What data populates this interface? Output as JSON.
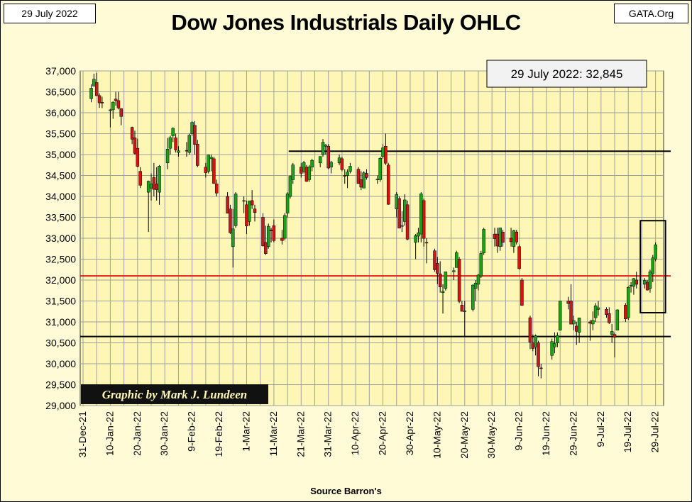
{
  "header": {
    "date": "29 July 2022",
    "site": "GATA.Org",
    "title": "Dow Jones Industrials Daily OHLC"
  },
  "annotation": {
    "last_close": "29 July 2022: 32,845",
    "credit": "Graphic by Mark J. Lundeen"
  },
  "footer": {
    "source": "Source Barron's"
  },
  "colors": {
    "up": "#1aa31a",
    "down": "#d21414",
    "plot_bg": "#fdf6b4",
    "page_bg": "#fefbd6",
    "grid": "#a0a0a0",
    "red_line": "#e02020",
    "black_line": "#000000"
  },
  "chart_data": {
    "type": "ohlc",
    "title": "Dow Jones Industrials Daily OHLC",
    "xlabel": "Source Barron's",
    "ylabel": "",
    "ylim": [
      29000,
      37000
    ],
    "y_ticks": [
      29000,
      29500,
      30000,
      30500,
      31000,
      31500,
      32000,
      32500,
      33000,
      33500,
      34000,
      34500,
      35000,
      35500,
      36000,
      36500,
      37000
    ],
    "x_ticks": [
      "31-Dec-21",
      "10-Jan-22",
      "20-Jan-22",
      "30-Jan-22",
      "9-Feb-22",
      "19-Feb-22",
      "1-Mar-22",
      "11-Mar-22",
      "21-Mar-22",
      "31-Mar-22",
      "10-Apr-22",
      "20-Apr-22",
      "30-Apr-22",
      "10-May-22",
      "20-May-22",
      "30-May-22",
      "9-Jun-22",
      "19-Jun-22",
      "29-Jun-22",
      "9-Jul-22",
      "19-Jul-22",
      "29-Jul-22"
    ],
    "grid": true,
    "reference_lines": [
      {
        "value": 35080,
        "color": "black",
        "from": "2022-03-18"
      },
      {
        "value": 32100,
        "color": "red",
        "from": "2021-12-31"
      },
      {
        "value": 30650,
        "color": "black",
        "from": "2021-12-31"
      }
    ],
    "highlight_box": {
      "x": [
        "2022-07-25",
        "2022-07-29"
      ],
      "y": [
        31220,
        33420
      ]
    },
    "candles": [
      {
        "d": "2022-01-03",
        "o": 36338,
        "h": 36680,
        "l": 36250,
        "c": 36585
      },
      {
        "d": "2022-01-04",
        "o": 36636,
        "h": 36934,
        "l": 36636,
        "c": 36800
      },
      {
        "d": "2022-01-05",
        "o": 36722,
        "h": 36952,
        "l": 36400,
        "c": 36407
      },
      {
        "d": "2022-01-06",
        "o": 36409,
        "h": 36464,
        "l": 36117,
        "c": 36236
      },
      {
        "d": "2022-01-07",
        "o": 36249,
        "h": 36383,
        "l": 36112,
        "c": 36231
      },
      {
        "d": "2022-01-10",
        "o": 36050,
        "h": 36093,
        "l": 35650,
        "c": 36068
      },
      {
        "d": "2022-01-11",
        "o": 36069,
        "h": 36272,
        "l": 35855,
        "c": 36252
      },
      {
        "d": "2022-01-12",
        "o": 36327,
        "h": 36500,
        "l": 36170,
        "c": 36290
      },
      {
        "d": "2022-01-13",
        "o": 36290,
        "h": 36500,
        "l": 36080,
        "c": 36113
      },
      {
        "d": "2022-01-14",
        "o": 36100,
        "h": 36108,
        "l": 35700,
        "c": 35911
      },
      {
        "d": "2022-01-18",
        "o": 35650,
        "h": 35668,
        "l": 35250,
        "c": 35368
      },
      {
        "d": "2022-01-19",
        "o": 35400,
        "h": 35571,
        "l": 35000,
        "c": 35029
      },
      {
        "d": "2022-01-20",
        "o": 35150,
        "h": 35380,
        "l": 34700,
        "c": 34715
      },
      {
        "d": "2022-01-21",
        "o": 34600,
        "h": 34700,
        "l": 34200,
        "c": 34265
      },
      {
        "d": "2022-01-24",
        "o": 34100,
        "h": 34380,
        "l": 33150,
        "c": 34364
      },
      {
        "d": "2022-01-25",
        "o": 34200,
        "h": 34550,
        "l": 33900,
        "c": 34297
      },
      {
        "d": "2022-01-26",
        "o": 34450,
        "h": 34800,
        "l": 34000,
        "c": 34168
      },
      {
        "d": "2022-01-27",
        "o": 34300,
        "h": 34700,
        "l": 33900,
        "c": 34160
      },
      {
        "d": "2022-01-28",
        "o": 34100,
        "h": 34750,
        "l": 33800,
        "c": 34725
      },
      {
        "d": "2022-01-31",
        "o": 34800,
        "h": 35400,
        "l": 34650,
        "c": 35131
      },
      {
        "d": "2022-02-01",
        "o": 35150,
        "h": 35450,
        "l": 35000,
        "c": 35405
      },
      {
        "d": "2022-02-02",
        "o": 35450,
        "h": 35650,
        "l": 35300,
        "c": 35629
      },
      {
        "d": "2022-02-03",
        "o": 35400,
        "h": 35500,
        "l": 35050,
        "c": 35111
      },
      {
        "d": "2022-02-04",
        "o": 35050,
        "h": 35200,
        "l": 34950,
        "c": 35089
      },
      {
        "d": "2022-02-07",
        "o": 35100,
        "h": 35300,
        "l": 34950,
        "c": 35091
      },
      {
        "d": "2022-02-08",
        "o": 35050,
        "h": 35500,
        "l": 35000,
        "c": 35463
      },
      {
        "d": "2022-02-09",
        "o": 35500,
        "h": 35800,
        "l": 35450,
        "c": 35768
      },
      {
        "d": "2022-02-10",
        "o": 35700,
        "h": 35800,
        "l": 35000,
        "c": 35241
      },
      {
        "d": "2022-02-11",
        "o": 35250,
        "h": 35350,
        "l": 34700,
        "c": 34738
      },
      {
        "d": "2022-02-14",
        "o": 34700,
        "h": 34800,
        "l": 34450,
        "c": 34566
      },
      {
        "d": "2022-02-15",
        "o": 34600,
        "h": 35000,
        "l": 34550,
        "c": 34989
      },
      {
        "d": "2022-02-16",
        "o": 34900,
        "h": 35000,
        "l": 34600,
        "c": 34935
      },
      {
        "d": "2022-02-17",
        "o": 34900,
        "h": 34950,
        "l": 34300,
        "c": 34312
      },
      {
        "d": "2022-02-18",
        "o": 34300,
        "h": 34400,
        "l": 34000,
        "c": 34079
      },
      {
        "d": "2022-02-22",
        "o": 34000,
        "h": 34100,
        "l": 33600,
        "c": 33596
      },
      {
        "d": "2022-02-23",
        "o": 33700,
        "h": 33800,
        "l": 33100,
        "c": 33131
      },
      {
        "d": "2022-02-24",
        "o": 32800,
        "h": 33700,
        "l": 32300,
        "c": 33224
      },
      {
        "d": "2022-02-25",
        "o": 33300,
        "h": 34100,
        "l": 33250,
        "c": 34059
      },
      {
        "d": "2022-02-28",
        "o": 33900,
        "h": 34000,
        "l": 33600,
        "c": 33893
      },
      {
        "d": "2022-03-01",
        "o": 33800,
        "h": 33900,
        "l": 33100,
        "c": 33294
      },
      {
        "d": "2022-03-02",
        "o": 33400,
        "h": 33900,
        "l": 33300,
        "c": 33892
      },
      {
        "d": "2022-03-03",
        "o": 33900,
        "h": 34150,
        "l": 33700,
        "c": 33795
      },
      {
        "d": "2022-03-04",
        "o": 33700,
        "h": 33800,
        "l": 33400,
        "c": 33615
      },
      {
        "d": "2022-03-07",
        "o": 33500,
        "h": 33600,
        "l": 32800,
        "c": 32818
      },
      {
        "d": "2022-03-08",
        "o": 32900,
        "h": 33300,
        "l": 32600,
        "c": 32633
      },
      {
        "d": "2022-03-09",
        "o": 32800,
        "h": 33350,
        "l": 32750,
        "c": 33287
      },
      {
        "d": "2022-03-10",
        "o": 33200,
        "h": 33250,
        "l": 32900,
        "c": 33174
      },
      {
        "d": "2022-03-11",
        "o": 33300,
        "h": 33450,
        "l": 32900,
        "c": 32944
      },
      {
        "d": "2022-03-14",
        "o": 33000,
        "h": 33200,
        "l": 32850,
        "c": 32945
      },
      {
        "d": "2022-03-15",
        "o": 33000,
        "h": 33600,
        "l": 32950,
        "c": 33544
      },
      {
        "d": "2022-03-16",
        "o": 33600,
        "h": 34100,
        "l": 33500,
        "c": 34063
      },
      {
        "d": "2022-03-17",
        "o": 34000,
        "h": 34500,
        "l": 33950,
        "c": 34481
      },
      {
        "d": "2022-03-18",
        "o": 34400,
        "h": 34800,
        "l": 34300,
        "c": 34754
      },
      {
        "d": "2022-03-21",
        "o": 34700,
        "h": 34800,
        "l": 34450,
        "c": 34553
      },
      {
        "d": "2022-03-22",
        "o": 34600,
        "h": 34850,
        "l": 34550,
        "c": 34808
      },
      {
        "d": "2022-03-23",
        "o": 34700,
        "h": 34750,
        "l": 34350,
        "c": 34358
      },
      {
        "d": "2022-03-24",
        "o": 34400,
        "h": 34750,
        "l": 34350,
        "c": 34707
      },
      {
        "d": "2022-03-25",
        "o": 34700,
        "h": 34900,
        "l": 34600,
        "c": 34861
      },
      {
        "d": "2022-03-28",
        "o": 34800,
        "h": 34950,
        "l": 34700,
        "c": 34955
      },
      {
        "d": "2022-03-29",
        "o": 35000,
        "h": 35370,
        "l": 34950,
        "c": 35294
      },
      {
        "d": "2022-03-30",
        "o": 35200,
        "h": 35250,
        "l": 35000,
        "c": 35228
      },
      {
        "d": "2022-03-31",
        "o": 35200,
        "h": 35250,
        "l": 34650,
        "c": 34678
      },
      {
        "d": "2022-04-01",
        "o": 34700,
        "h": 34850,
        "l": 34550,
        "c": 34818
      },
      {
        "d": "2022-04-04",
        "o": 34800,
        "h": 35000,
        "l": 34750,
        "c": 34922
      },
      {
        "d": "2022-04-05",
        "o": 34900,
        "h": 34950,
        "l": 34600,
        "c": 34641
      },
      {
        "d": "2022-04-06",
        "o": 34500,
        "h": 34650,
        "l": 34300,
        "c": 34497
      },
      {
        "d": "2022-04-07",
        "o": 34500,
        "h": 34650,
        "l": 34200,
        "c": 34583
      },
      {
        "d": "2022-04-08",
        "o": 34600,
        "h": 34800,
        "l": 34550,
        "c": 34721
      },
      {
        "d": "2022-04-11",
        "o": 34650,
        "h": 34700,
        "l": 34300,
        "c": 34308
      },
      {
        "d": "2022-04-12",
        "o": 34400,
        "h": 34600,
        "l": 34150,
        "c": 34220
      },
      {
        "d": "2022-04-13",
        "o": 34200,
        "h": 34600,
        "l": 34200,
        "c": 34564
      },
      {
        "d": "2022-04-14",
        "o": 34550,
        "h": 34650,
        "l": 34400,
        "c": 34451
      },
      {
        "d": "2022-04-18",
        "o": 34400,
        "h": 34500,
        "l": 34300,
        "c": 34412
      },
      {
        "d": "2022-04-19",
        "o": 34400,
        "h": 34950,
        "l": 34350,
        "c": 34911
      },
      {
        "d": "2022-04-20",
        "o": 34950,
        "h": 35250,
        "l": 34900,
        "c": 35161
      },
      {
        "d": "2022-04-21",
        "o": 35200,
        "h": 35500,
        "l": 34750,
        "c": 34793
      },
      {
        "d": "2022-04-22",
        "o": 34750,
        "h": 34800,
        "l": 33800,
        "c": 33811
      },
      {
        "d": "2022-04-25",
        "o": 33700,
        "h": 34100,
        "l": 33500,
        "c": 34049
      },
      {
        "d": "2022-04-26",
        "o": 33950,
        "h": 34000,
        "l": 33250,
        "c": 33240
      },
      {
        "d": "2022-04-27",
        "o": 33300,
        "h": 33650,
        "l": 33150,
        "c": 33302
      },
      {
        "d": "2022-04-28",
        "o": 33400,
        "h": 34050,
        "l": 33300,
        "c": 33916
      },
      {
        "d": "2022-04-29",
        "o": 33800,
        "h": 33900,
        "l": 32950,
        "c": 32977
      },
      {
        "d": "2022-05-02",
        "o": 32900,
        "h": 33100,
        "l": 32500,
        "c": 33061
      },
      {
        "d": "2022-05-03",
        "o": 33050,
        "h": 33250,
        "l": 32900,
        "c": 33129
      },
      {
        "d": "2022-05-04",
        "o": 33100,
        "h": 34100,
        "l": 32900,
        "c": 34061
      },
      {
        "d": "2022-05-05",
        "o": 33900,
        "h": 33950,
        "l": 32800,
        "c": 32997
      },
      {
        "d": "2022-05-06",
        "o": 32900,
        "h": 33000,
        "l": 32400,
        "c": 32899
      },
      {
        "d": "2022-05-09",
        "o": 32700,
        "h": 32750,
        "l": 32200,
        "c": 32246
      },
      {
        "d": "2022-05-10",
        "o": 32400,
        "h": 32550,
        "l": 31900,
        "c": 32161
      },
      {
        "d": "2022-05-11",
        "o": 32150,
        "h": 32450,
        "l": 31700,
        "c": 31834
      },
      {
        "d": "2022-05-12",
        "o": 31700,
        "h": 31900,
        "l": 31200,
        "c": 31730
      },
      {
        "d": "2022-05-13",
        "o": 31800,
        "h": 32200,
        "l": 31750,
        "c": 32197
      },
      {
        "d": "2022-05-16",
        "o": 32200,
        "h": 32300,
        "l": 32000,
        "c": 32223
      },
      {
        "d": "2022-05-17",
        "o": 32300,
        "h": 32700,
        "l": 32300,
        "c": 32655
      },
      {
        "d": "2022-05-18",
        "o": 32500,
        "h": 32550,
        "l": 31450,
        "c": 31490
      },
      {
        "d": "2022-05-19",
        "o": 31400,
        "h": 31500,
        "l": 31250,
        "c": 31253
      },
      {
        "d": "2022-05-20",
        "o": 31250,
        "h": 31500,
        "l": 30650,
        "c": 31262
      },
      {
        "d": "2022-05-23",
        "o": 31300,
        "h": 31900,
        "l": 31250,
        "c": 31880
      },
      {
        "d": "2022-05-24",
        "o": 31800,
        "h": 32000,
        "l": 31500,
        "c": 31929
      },
      {
        "d": "2022-05-25",
        "o": 31900,
        "h": 32150,
        "l": 31750,
        "c": 32120
      },
      {
        "d": "2022-05-26",
        "o": 32100,
        "h": 32700,
        "l": 32050,
        "c": 32637
      },
      {
        "d": "2022-05-27",
        "o": 32650,
        "h": 33250,
        "l": 32600,
        "c": 33213
      },
      {
        "d": "2022-05-31",
        "o": 33100,
        "h": 33250,
        "l": 32800,
        "c": 32990
      },
      {
        "d": "2022-06-01",
        "o": 33100,
        "h": 33250,
        "l": 32650,
        "c": 32813
      },
      {
        "d": "2022-06-02",
        "o": 32800,
        "h": 33200,
        "l": 32700,
        "c": 33248
      },
      {
        "d": "2022-06-03",
        "o": 33150,
        "h": 33200,
        "l": 32800,
        "c": 32900
      },
      {
        "d": "2022-06-06",
        "o": 33000,
        "h": 33250,
        "l": 32800,
        "c": 32916
      },
      {
        "d": "2022-06-07",
        "o": 32800,
        "h": 33200,
        "l": 32650,
        "c": 33180
      },
      {
        "d": "2022-06-08",
        "o": 33150,
        "h": 33200,
        "l": 32850,
        "c": 32910
      },
      {
        "d": "2022-06-09",
        "o": 32800,
        "h": 32850,
        "l": 32250,
        "c": 32272
      },
      {
        "d": "2022-06-10",
        "o": 32000,
        "h": 32050,
        "l": 31400,
        "c": 31393
      },
      {
        "d": "2022-06-13",
        "o": 31100,
        "h": 31150,
        "l": 30350,
        "c": 30517
      },
      {
        "d": "2022-06-14",
        "o": 30500,
        "h": 30700,
        "l": 30300,
        "c": 30365
      },
      {
        "d": "2022-06-15",
        "o": 30400,
        "h": 30700,
        "l": 30200,
        "c": 30669
      },
      {
        "d": "2022-06-16",
        "o": 30500,
        "h": 30550,
        "l": 29700,
        "c": 29927
      },
      {
        "d": "2022-06-17",
        "o": 29900,
        "h": 30000,
        "l": 29650,
        "c": 29888
      },
      {
        "d": "2022-06-21",
        "o": 30200,
        "h": 30600,
        "l": 30100,
        "c": 30530
      },
      {
        "d": "2022-06-22",
        "o": 30400,
        "h": 30750,
        "l": 30250,
        "c": 30483
      },
      {
        "d": "2022-06-23",
        "o": 30500,
        "h": 30750,
        "l": 30400,
        "c": 30677
      },
      {
        "d": "2022-06-24",
        "o": 30800,
        "h": 31500,
        "l": 30800,
        "c": 31500
      },
      {
        "d": "2022-06-27",
        "o": 31500,
        "h": 31600,
        "l": 31300,
        "c": 31438
      },
      {
        "d": "2022-06-28",
        "o": 31500,
        "h": 31900,
        "l": 30950,
        "c": 30947
      },
      {
        "d": "2022-06-29",
        "o": 30950,
        "h": 31150,
        "l": 30800,
        "c": 31029
      },
      {
        "d": "2022-06-30",
        "o": 30900,
        "h": 31000,
        "l": 30450,
        "c": 30775
      },
      {
        "d": "2022-07-01",
        "o": 30750,
        "h": 31100,
        "l": 30500,
        "c": 31097
      },
      {
        "d": "2022-07-05",
        "o": 31000,
        "h": 31050,
        "l": 30550,
        "c": 30967
      },
      {
        "d": "2022-07-06",
        "o": 30950,
        "h": 31250,
        "l": 30800,
        "c": 31037
      },
      {
        "d": "2022-07-07",
        "o": 31100,
        "h": 31450,
        "l": 31000,
        "c": 31385
      },
      {
        "d": "2022-07-08",
        "o": 31300,
        "h": 31500,
        "l": 31150,
        "c": 31338
      },
      {
        "d": "2022-07-11",
        "o": 31300,
        "h": 31350,
        "l": 31100,
        "c": 31173
      },
      {
        "d": "2022-07-12",
        "o": 31200,
        "h": 31350,
        "l": 30950,
        "c": 30981
      },
      {
        "d": "2022-07-13",
        "o": 30700,
        "h": 30950,
        "l": 30500,
        "c": 30772
      },
      {
        "d": "2022-07-14",
        "o": 30700,
        "h": 30750,
        "l": 30150,
        "c": 30630
      },
      {
        "d": "2022-07-15",
        "o": 30800,
        "h": 31300,
        "l": 30800,
        "c": 31288
      },
      {
        "d": "2022-07-18",
        "o": 31400,
        "h": 31450,
        "l": 31000,
        "c": 31072
      },
      {
        "d": "2022-07-19",
        "o": 31100,
        "h": 31850,
        "l": 31050,
        "c": 31827
      },
      {
        "d": "2022-07-20",
        "o": 31850,
        "h": 31950,
        "l": 31700,
        "c": 31874
      },
      {
        "d": "2022-07-21",
        "o": 31850,
        "h": 32050,
        "l": 31650,
        "c": 32036
      },
      {
        "d": "2022-07-22",
        "o": 32000,
        "h": 32200,
        "l": 31800,
        "c": 31899
      },
      {
        "d": "2022-07-25",
        "o": 31900,
        "h": 32050,
        "l": 31800,
        "c": 31990
      },
      {
        "d": "2022-07-26",
        "o": 31950,
        "h": 32000,
        "l": 31750,
        "c": 31762
      },
      {
        "d": "2022-07-27",
        "o": 31800,
        "h": 32250,
        "l": 31700,
        "c": 32197
      },
      {
        "d": "2022-07-28",
        "o": 32150,
        "h": 32600,
        "l": 31950,
        "c": 32529
      },
      {
        "d": "2022-07-29",
        "o": 32500,
        "h": 32900,
        "l": 32450,
        "c": 32845
      }
    ]
  }
}
